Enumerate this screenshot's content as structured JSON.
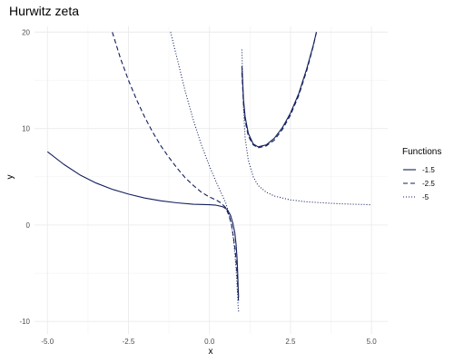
{
  "chart_data": {
    "type": "line",
    "title": "Hurwitz zeta",
    "xlabel": "x",
    "ylabel": "y",
    "xlim": [
      -5.4,
      5.5
    ],
    "ylim": [
      -11.3,
      20.6
    ],
    "xticks": [
      -5.0,
      -2.5,
      0.0,
      2.5,
      5.0
    ],
    "xtick_labels": [
      "-5.0",
      "-2.5",
      "0.0",
      "2.5",
      "5.0"
    ],
    "yticks": [
      -10,
      0,
      10,
      20
    ],
    "ytick_labels": [
      "-10",
      "0",
      "10",
      "20"
    ],
    "grid": true,
    "legend_title": "Functions",
    "legend_position": "right",
    "line_color": "#131f5e",
    "series": [
      {
        "name": "-1.5",
        "dash": "solid",
        "segments": [
          [
            [
              -5.0,
              7.6
            ],
            [
              -4.5,
              6.3
            ],
            [
              -4.0,
              5.2
            ],
            [
              -3.5,
              4.35
            ],
            [
              -3.0,
              3.7
            ],
            [
              -2.5,
              3.2
            ],
            [
              -2.0,
              2.8
            ],
            [
              -1.5,
              2.5
            ],
            [
              -1.0,
              2.3
            ],
            [
              -0.5,
              2.15
            ],
            [
              0.0,
              2.1
            ],
            [
              0.2,
              2.05
            ],
            [
              0.4,
              1.9
            ],
            [
              0.55,
              1.6
            ],
            [
              0.65,
              1.0
            ],
            [
              0.72,
              0.2
            ],
            [
              0.78,
              -0.8
            ],
            [
              0.82,
              -2.0
            ],
            [
              0.85,
              -3.5
            ],
            [
              0.87,
              -5.0
            ],
            [
              0.885,
              -6.5
            ],
            [
              0.9,
              -7.5
            ]
          ],
          [
            [
              1.0,
              16.5
            ],
            [
              1.05,
              13.0
            ],
            [
              1.1,
              11.2
            ],
            [
              1.2,
              9.5
            ],
            [
              1.35,
              8.4
            ],
            [
              1.5,
              8.1
            ],
            [
              1.75,
              8.3
            ],
            [
              2.0,
              9.0
            ],
            [
              2.25,
              10.1
            ],
            [
              2.5,
              11.6
            ],
            [
              2.75,
              13.6
            ],
            [
              3.0,
              16.2
            ],
            [
              3.2,
              18.6
            ],
            [
              3.3,
              20.0
            ]
          ]
        ]
      },
      {
        "name": "-2.5",
        "dash": "dashed",
        "segments": [
          [
            [
              -3.0,
              20.0
            ],
            [
              -2.75,
              17.3
            ],
            [
              -2.5,
              15.0
            ],
            [
              -2.25,
              13.0
            ],
            [
              -2.0,
              11.2
            ],
            [
              -1.75,
              9.6
            ],
            [
              -1.5,
              8.2
            ],
            [
              -1.25,
              7.0
            ],
            [
              -1.0,
              5.9
            ],
            [
              -0.75,
              4.9
            ],
            [
              -0.5,
              4.1
            ],
            [
              -0.25,
              3.4
            ],
            [
              0.0,
              2.9
            ],
            [
              0.2,
              2.6
            ],
            [
              0.35,
              2.3
            ],
            [
              0.5,
              1.8
            ],
            [
              0.6,
              1.0
            ],
            [
              0.68,
              0.0
            ],
            [
              0.74,
              -1.2
            ],
            [
              0.79,
              -2.5
            ],
            [
              0.83,
              -4.0
            ],
            [
              0.86,
              -5.5
            ],
            [
              0.88,
              -7.0
            ],
            [
              0.9,
              -8.0
            ]
          ],
          [
            [
              1.0,
              15.8
            ],
            [
              1.05,
              12.5
            ],
            [
              1.1,
              10.8
            ],
            [
              1.2,
              9.2
            ],
            [
              1.35,
              8.3
            ],
            [
              1.5,
              8.0
            ],
            [
              1.75,
              8.2
            ],
            [
              2.0,
              8.8
            ],
            [
              2.25,
              9.9
            ],
            [
              2.5,
              11.4
            ],
            [
              2.75,
              13.4
            ],
            [
              3.0,
              16.0
            ],
            [
              3.2,
              18.5
            ],
            [
              3.3,
              20.0
            ]
          ]
        ]
      },
      {
        "name": "-5",
        "dash": "dotted",
        "segments": [
          [
            [
              -1.2,
              20.0
            ],
            [
              -1.0,
              17.3
            ],
            [
              -0.75,
              13.9
            ],
            [
              -0.5,
              10.9
            ],
            [
              -0.25,
              8.3
            ],
            [
              0.0,
              6.1
            ],
            [
              0.2,
              4.5
            ],
            [
              0.35,
              3.4
            ],
            [
              0.5,
              2.3
            ],
            [
              0.6,
              1.2
            ],
            [
              0.68,
              0.0
            ],
            [
              0.74,
              -1.5
            ],
            [
              0.79,
              -3.2
            ],
            [
              0.83,
              -5.0
            ],
            [
              0.86,
              -6.8
            ],
            [
              0.88,
              -8.2
            ],
            [
              0.9,
              -9.0
            ]
          ],
          [
            [
              1.0,
              18.2
            ],
            [
              1.05,
              12.0
            ],
            [
              1.1,
              9.0
            ],
            [
              1.2,
              6.7
            ],
            [
              1.35,
              5.0
            ],
            [
              1.5,
              4.1
            ],
            [
              1.75,
              3.4
            ],
            [
              2.0,
              3.0
            ],
            [
              2.5,
              2.6
            ],
            [
              3.0,
              2.4
            ],
            [
              3.5,
              2.3
            ],
            [
              4.0,
              2.2
            ],
            [
              4.5,
              2.15
            ],
            [
              5.0,
              2.1
            ]
          ]
        ]
      }
    ]
  }
}
